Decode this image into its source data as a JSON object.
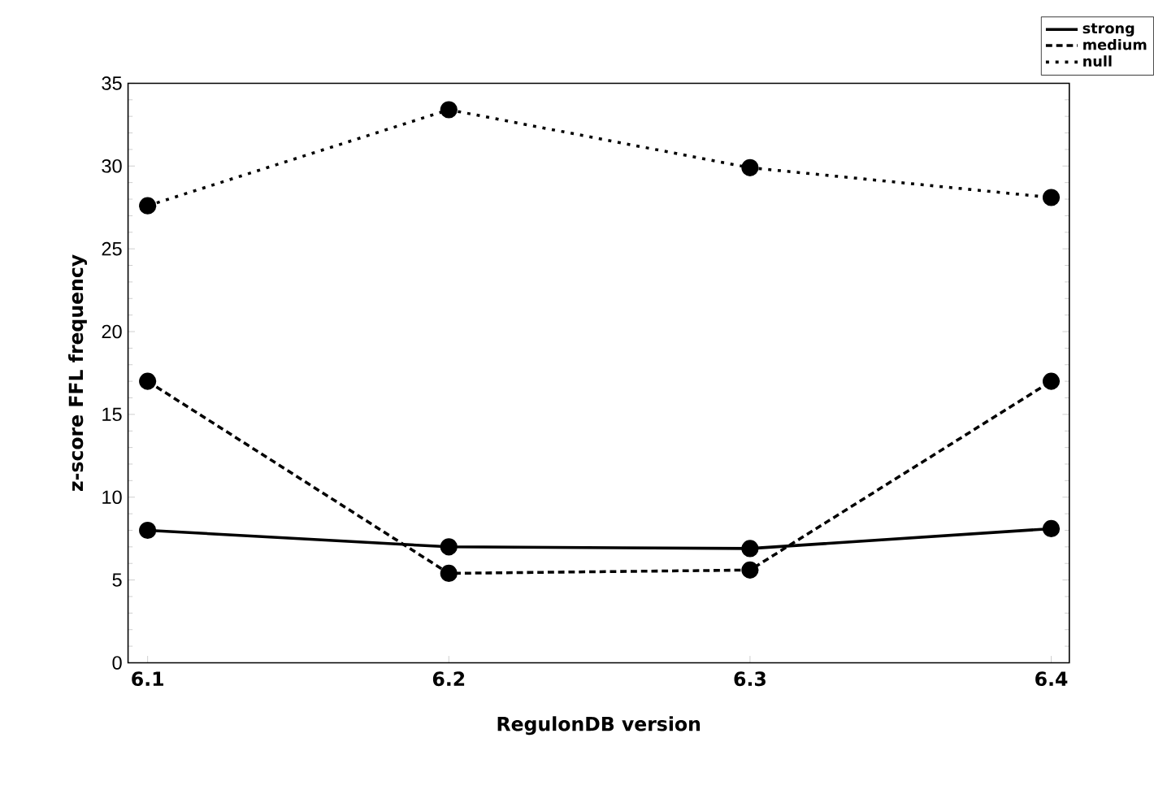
{
  "chart_data": {
    "type": "line",
    "xlabel": "RegulonDB version",
    "ylabel": "z-score FFL frequency",
    "categories": [
      "6.1",
      "6.2",
      "6.3",
      "6.4"
    ],
    "series": [
      {
        "name": "strong",
        "color": "#000000",
        "line_style": "solid",
        "values": [
          8.0,
          7.0,
          6.9,
          8.1
        ]
      },
      {
        "name": "medium",
        "color": "#000000",
        "line_style": "dashed",
        "values": [
          17.0,
          5.4,
          5.6,
          17.0
        ]
      },
      {
        "name": "null",
        "color": "#000000",
        "line_style": "dotted",
        "values": [
          27.6,
          33.4,
          29.9,
          28.1
        ]
      }
    ],
    "ylim": [
      0,
      35
    ],
    "yticks": [
      0,
      5,
      10,
      15,
      20,
      25,
      30,
      35
    ],
    "marker": "circle",
    "legend": "top right"
  }
}
